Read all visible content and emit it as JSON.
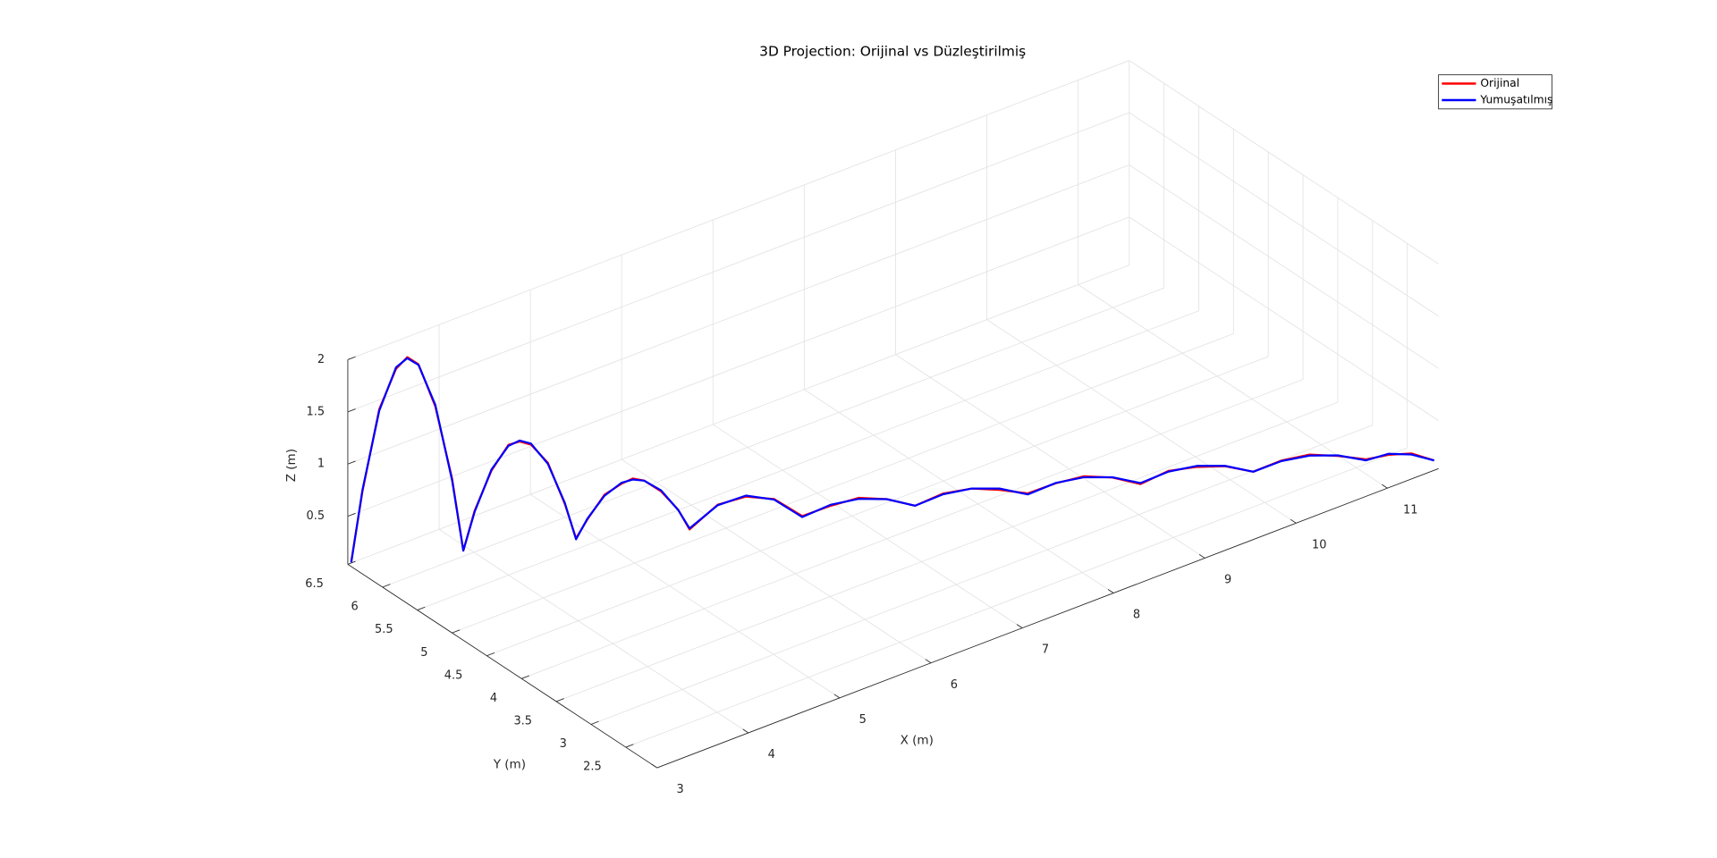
{
  "chart_data": {
    "type": "line3d",
    "title": "3D Projection: Orijinal vs Düzleştirilmiş",
    "xlabel": "X (m)",
    "ylabel": "Y (m)",
    "zlabel": "Z (m)",
    "xlim": [
      3,
      11.56
    ],
    "ylim": [
      2.05,
      6.5
    ],
    "zlim": [
      0.04,
      2
    ],
    "xticks": [
      3,
      4,
      5,
      6,
      7,
      8,
      9,
      10,
      11
    ],
    "yticks": [
      2.5,
      3,
      3.5,
      4,
      4.5,
      5,
      5.5,
      6,
      6.5
    ],
    "zticks": [
      0.5,
      1,
      1.5,
      2
    ],
    "grid": true,
    "legend_location": "northeast",
    "series": [
      {
        "name": "Orijinal",
        "color": "#ff0000",
        "x": [
          3.0,
          3.09,
          3.225,
          3.36,
          3.45,
          3.54,
          3.675,
          3.81,
          3.9,
          3.99,
          4.125,
          4.26,
          4.35,
          4.44,
          4.575,
          4.71,
          4.8,
          4.89,
          5.025,
          5.16,
          5.25,
          5.34,
          5.475,
          5.61,
          5.7,
          5.925,
          6.15,
          6.375,
          6.6,
          6.825,
          7.05,
          7.275,
          7.5,
          7.725,
          7.95,
          8.175,
          8.4,
          8.625,
          8.85,
          9.075,
          9.3,
          9.525,
          9.75,
          9.975,
          10.2,
          10.425,
          10.65,
          10.875,
          11.1,
          11.25,
          11.4,
          11.55
        ],
        "y": [
          6.45,
          6.407,
          6.343,
          6.278,
          6.235,
          6.192,
          6.128,
          6.063,
          6.02,
          5.976,
          5.91,
          5.844,
          5.8,
          5.756,
          5.69,
          5.624,
          5.58,
          5.535,
          5.468,
          5.4,
          5.355,
          5.31,
          5.243,
          5.175,
          5.13,
          5.02,
          4.91,
          4.8,
          4.69,
          4.58,
          4.47,
          4.36,
          4.25,
          4.14,
          4.03,
          3.92,
          3.81,
          3.7,
          3.59,
          3.48,
          3.37,
          3.26,
          3.15,
          3.04,
          2.93,
          2.82,
          2.71,
          2.6,
          2.49,
          2.36,
          2.23,
          2.1
        ],
        "z": [
          0.09,
          0.75,
          1.52,
          1.89,
          1.99,
          1.91,
          1.49,
          0.78,
          0.08,
          0.45,
          0.82,
          1.05,
          1.07,
          1.03,
          0.84,
          0.43,
          0.09,
          0.26,
          0.48,
          0.57,
          0.61,
          0.58,
          0.46,
          0.27,
          0.07,
          0.28,
          0.33,
          0.28,
          0.09,
          0.16,
          0.21,
          0.17,
          0.08,
          0.17,
          0.19,
          0.15,
          0.09,
          0.16,
          0.2,
          0.16,
          0.07,
          0.17,
          0.18,
          0.16,
          0.08,
          0.16,
          0.19,
          0.15,
          0.09,
          0.14,
          0.16,
          0.1
        ]
      },
      {
        "name": "Yumuşatılmış",
        "color": "#0000ff",
        "x": [
          3.0,
          3.09,
          3.225,
          3.36,
          3.45,
          3.54,
          3.675,
          3.81,
          3.9,
          3.99,
          4.125,
          4.26,
          4.35,
          4.44,
          4.575,
          4.71,
          4.8,
          4.89,
          5.025,
          5.16,
          5.25,
          5.34,
          5.475,
          5.61,
          5.7,
          5.925,
          6.15,
          6.375,
          6.6,
          6.825,
          7.05,
          7.275,
          7.5,
          7.725,
          7.95,
          8.175,
          8.4,
          8.625,
          8.85,
          9.075,
          9.3,
          9.525,
          9.75,
          9.975,
          10.2,
          10.425,
          10.65,
          10.875,
          11.1,
          11.25,
          11.4,
          11.55
        ],
        "y": [
          6.45,
          6.407,
          6.343,
          6.278,
          6.235,
          6.192,
          6.128,
          6.063,
          6.02,
          5.976,
          5.91,
          5.844,
          5.8,
          5.756,
          5.69,
          5.624,
          5.58,
          5.535,
          5.468,
          5.4,
          5.355,
          5.31,
          5.243,
          5.175,
          5.13,
          5.02,
          4.91,
          4.8,
          4.69,
          4.58,
          4.47,
          4.36,
          4.25,
          4.14,
          4.03,
          3.92,
          3.81,
          3.7,
          3.59,
          3.48,
          3.37,
          3.26,
          3.15,
          3.04,
          2.93,
          2.82,
          2.71,
          2.6,
          2.49,
          2.36,
          2.23,
          2.1
        ],
        "z": [
          0.08,
          0.764,
          1.505,
          1.904,
          1.98,
          1.904,
          1.505,
          0.764,
          0.08,
          0.44,
          0.83,
          1.04,
          1.08,
          1.04,
          0.83,
          0.44,
          0.08,
          0.267,
          0.47,
          0.579,
          0.6,
          0.579,
          0.47,
          0.267,
          0.08,
          0.275,
          0.34,
          0.275,
          0.08,
          0.17,
          0.2,
          0.17,
          0.08,
          0.163,
          0.19,
          0.163,
          0.08,
          0.163,
          0.19,
          0.163,
          0.08,
          0.163,
          0.19,
          0.163,
          0.08,
          0.155,
          0.18,
          0.155,
          0.08,
          0.15,
          0.15,
          0.1
        ]
      }
    ]
  }
}
